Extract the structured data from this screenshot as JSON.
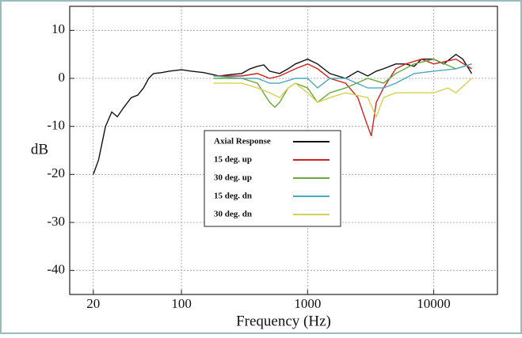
{
  "chart_data": {
    "type": "line",
    "x_label": "Frequency (Hz)",
    "y_label": "dB",
    "x_scale": "log",
    "xlim": [
      13,
      32000
    ],
    "ylim": [
      -45,
      15
    ],
    "xticks": [
      20,
      100,
      1000,
      10000
    ],
    "yticks": [
      10,
      0,
      -10,
      -20,
      -30,
      -40
    ],
    "grid": true,
    "legend": "center",
    "series": [
      {
        "name": "Axial Response",
        "color": "#111111",
        "x": [
          20,
          22,
          25,
          28,
          31,
          35,
          40,
          45,
          50,
          55,
          60,
          70,
          80,
          100,
          120,
          150,
          200,
          250,
          300,
          350,
          400,
          450,
          500,
          600,
          700,
          800,
          1000,
          1200,
          1500,
          2000,
          2500,
          3000,
          3500,
          4000,
          5000,
          6000,
          7000,
          8000,
          10000,
          12000,
          15000,
          17000,
          20000
        ],
        "values": [
          -20,
          -17,
          -10,
          -7,
          -8,
          -6,
          -4,
          -3.5,
          -2,
          0,
          1,
          1.2,
          1.5,
          1.8,
          1.5,
          1.2,
          0.5,
          0.8,
          1,
          2,
          2.5,
          2.8,
          1.5,
          1,
          2,
          3,
          4,
          3,
          1,
          0,
          1.5,
          0.5,
          1.5,
          2,
          3,
          3,
          2.5,
          4,
          4,
          3,
          5,
          4,
          1
        ]
      },
      {
        "name": "15 deg. up",
        "color": "#d02020",
        "x": [
          180,
          300,
          400,
          500,
          600,
          800,
          1000,
          1200,
          1500,
          2000,
          2500,
          3000,
          3200,
          3500,
          4000,
          5000,
          6000,
          8000,
          10000,
          15000,
          20000
        ],
        "values": [
          0.5,
          0.5,
          1,
          0,
          0.5,
          2,
          3,
          2,
          0,
          -1,
          -4,
          -10,
          -12,
          -5,
          -2,
          2,
          3,
          4,
          3,
          4,
          2
        ]
      },
      {
        "name": "30 deg. up",
        "color": "#6aa83a",
        "x": [
          180,
          300,
          400,
          500,
          550,
          600,
          700,
          800,
          1000,
          1200,
          1500,
          2000,
          3000,
          4000,
          5000,
          7000,
          10000,
          15000,
          20000
        ],
        "values": [
          0,
          0,
          -1,
          -5,
          -6,
          -5,
          -2,
          -1,
          -2,
          -5,
          -3,
          -2,
          0,
          -1,
          1,
          3,
          4,
          2,
          3
        ]
      },
      {
        "name": "15 deg. dn",
        "color": "#4aa8c0",
        "x": [
          180,
          300,
          400,
          500,
          600,
          800,
          1000,
          1200,
          1500,
          2000,
          3000,
          4000,
          5000,
          7000,
          10000,
          15000,
          20000
        ],
        "values": [
          0.5,
          0,
          0,
          -1,
          -1,
          0,
          0,
          -2,
          0,
          0,
          -2,
          -2,
          -1,
          1,
          1.5,
          2,
          3
        ]
      },
      {
        "name": "30 deg. dn",
        "color": "#d8d050",
        "x": [
          180,
          300,
          400,
          500,
          600,
          700,
          800,
          1000,
          1200,
          1500,
          2000,
          3000,
          3500,
          4000,
          5000,
          7000,
          10000,
          13000,
          15000,
          20000
        ],
        "values": [
          -1,
          -1,
          -2,
          -3,
          -4,
          -2,
          -1,
          -3,
          -5,
          -4,
          -3,
          -4,
          -8,
          -4,
          -3,
          -3,
          -3,
          -2,
          -3,
          0
        ]
      }
    ]
  }
}
